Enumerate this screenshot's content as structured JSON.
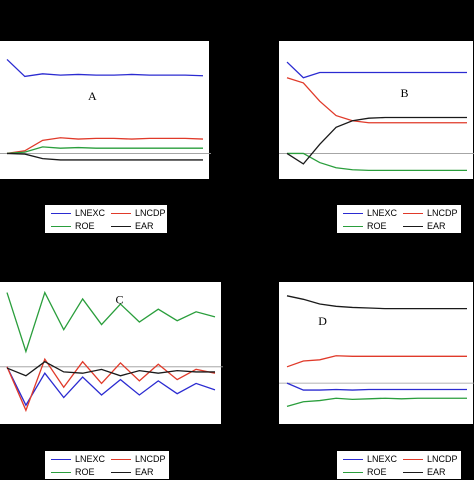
{
  "colors": {
    "LNEXC": "#2b2bd1",
    "LNCDP": "#e03a2a",
    "ROE": "#2a9e3c",
    "EAR": "#1a1a1a",
    "zero_line": "#999999",
    "background": "#000000"
  },
  "legend": {
    "entries": [
      "LNEXC",
      "LNCDP",
      "ROE",
      "EAR"
    ]
  },
  "chart_data": [
    {
      "type": "line",
      "title": "A",
      "x": [
        1,
        2,
        3,
        4,
        5,
        6,
        7,
        8,
        9,
        10,
        11,
        12
      ],
      "ylim": [
        -1.5,
        8
      ],
      "zero_line": 0,
      "series": [
        {
          "name": "LNEXC",
          "values": [
            7.2,
            5.9,
            6.1,
            6.0,
            6.05,
            6.0,
            6.0,
            6.05,
            6.0,
            6.0,
            6.0,
            5.95
          ]
        },
        {
          "name": "LNCDP",
          "values": [
            0.0,
            0.2,
            1.0,
            1.2,
            1.1,
            1.15,
            1.15,
            1.1,
            1.15,
            1.15,
            1.15,
            1.1
          ]
        },
        {
          "name": "ROE",
          "values": [
            0.0,
            0.1,
            0.5,
            0.4,
            0.45,
            0.4,
            0.4,
            0.4,
            0.4,
            0.4,
            0.4,
            0.4
          ]
        },
        {
          "name": "EAR",
          "values": [
            0.0,
            -0.05,
            -0.4,
            -0.5,
            -0.5,
            -0.5,
            -0.5,
            -0.5,
            -0.5,
            -0.5,
            -0.5,
            -0.5
          ]
        }
      ]
    },
    {
      "type": "line",
      "title": "B",
      "x": [
        1,
        2,
        3,
        4,
        5,
        6,
        7,
        8,
        9,
        10,
        11,
        12
      ],
      "ylim": [
        -1.5,
        8
      ],
      "zero_line": 0,
      "series": [
        {
          "name": "LNEXC",
          "values": [
            7.0,
            5.8,
            6.2,
            6.2,
            6.2,
            6.2,
            6.2,
            6.2,
            6.2,
            6.2,
            6.2,
            6.2
          ]
        },
        {
          "name": "LNCDP",
          "values": [
            5.8,
            5.4,
            4.0,
            2.9,
            2.5,
            2.35,
            2.35,
            2.35,
            2.35,
            2.35,
            2.35,
            2.35
          ]
        },
        {
          "name": "ROE",
          "values": [
            0.0,
            0.0,
            -0.7,
            -1.1,
            -1.25,
            -1.3,
            -1.3,
            -1.3,
            -1.3,
            -1.3,
            -1.3,
            -1.3
          ]
        },
        {
          "name": "EAR",
          "values": [
            0.0,
            -0.8,
            0.7,
            2.0,
            2.5,
            2.7,
            2.75,
            2.75,
            2.75,
            2.75,
            2.75,
            2.75
          ]
        }
      ]
    },
    {
      "type": "line",
      "title": "C",
      "x": [
        1,
        2,
        3,
        4,
        5,
        6,
        7,
        8,
        9,
        10,
        11,
        12
      ],
      "ylim": [
        -4,
        6
      ],
      "zero_line": 0,
      "series": [
        {
          "name": "LNEXC",
          "values": [
            0.0,
            -3.0,
            -0.5,
            -2.4,
            -0.8,
            -2.2,
            -1.0,
            -2.2,
            -1.1,
            -2.1,
            -1.3,
            -1.8
          ]
        },
        {
          "name": "LNCDP",
          "values": [
            0.0,
            -3.4,
            0.6,
            -1.6,
            0.4,
            -1.3,
            0.3,
            -1.1,
            0.2,
            -1.0,
            -0.2,
            -0.5
          ]
        },
        {
          "name": "ROE",
          "values": [
            5.8,
            1.2,
            5.8,
            2.9,
            5.3,
            3.3,
            4.9,
            3.5,
            4.5,
            3.6,
            4.3,
            3.9
          ]
        },
        {
          "name": "EAR",
          "values": [
            -0.1,
            -0.7,
            0.4,
            -0.4,
            -0.5,
            -0.2,
            -0.7,
            -0.3,
            -0.5,
            -0.3,
            -0.4,
            -0.4
          ]
        }
      ]
    },
    {
      "type": "line",
      "title": "D",
      "x": [
        1,
        2,
        3,
        4,
        5,
        6,
        7,
        8,
        9,
        10,
        11,
        12
      ],
      "ylim": [
        -3,
        8
      ],
      "zero_line": 0,
      "series": [
        {
          "name": "LNEXC",
          "values": [
            0.0,
            -0.6,
            -0.6,
            -0.55,
            -0.6,
            -0.55,
            -0.55,
            -0.55,
            -0.55,
            -0.55,
            -0.55,
            -0.55
          ]
        },
        {
          "name": "LNCDP",
          "values": [
            1.4,
            1.9,
            2.0,
            2.35,
            2.3,
            2.3,
            2.3,
            2.3,
            2.3,
            2.3,
            2.3,
            2.3
          ]
        },
        {
          "name": "ROE",
          "values": [
            -2.0,
            -1.6,
            -1.5,
            -1.3,
            -1.4,
            -1.35,
            -1.3,
            -1.35,
            -1.3,
            -1.3,
            -1.3,
            -1.3
          ]
        },
        {
          "name": "EAR",
          "values": [
            7.5,
            7.2,
            6.8,
            6.6,
            6.5,
            6.45,
            6.4,
            6.4,
            6.4,
            6.4,
            6.4,
            6.4
          ]
        }
      ]
    }
  ]
}
